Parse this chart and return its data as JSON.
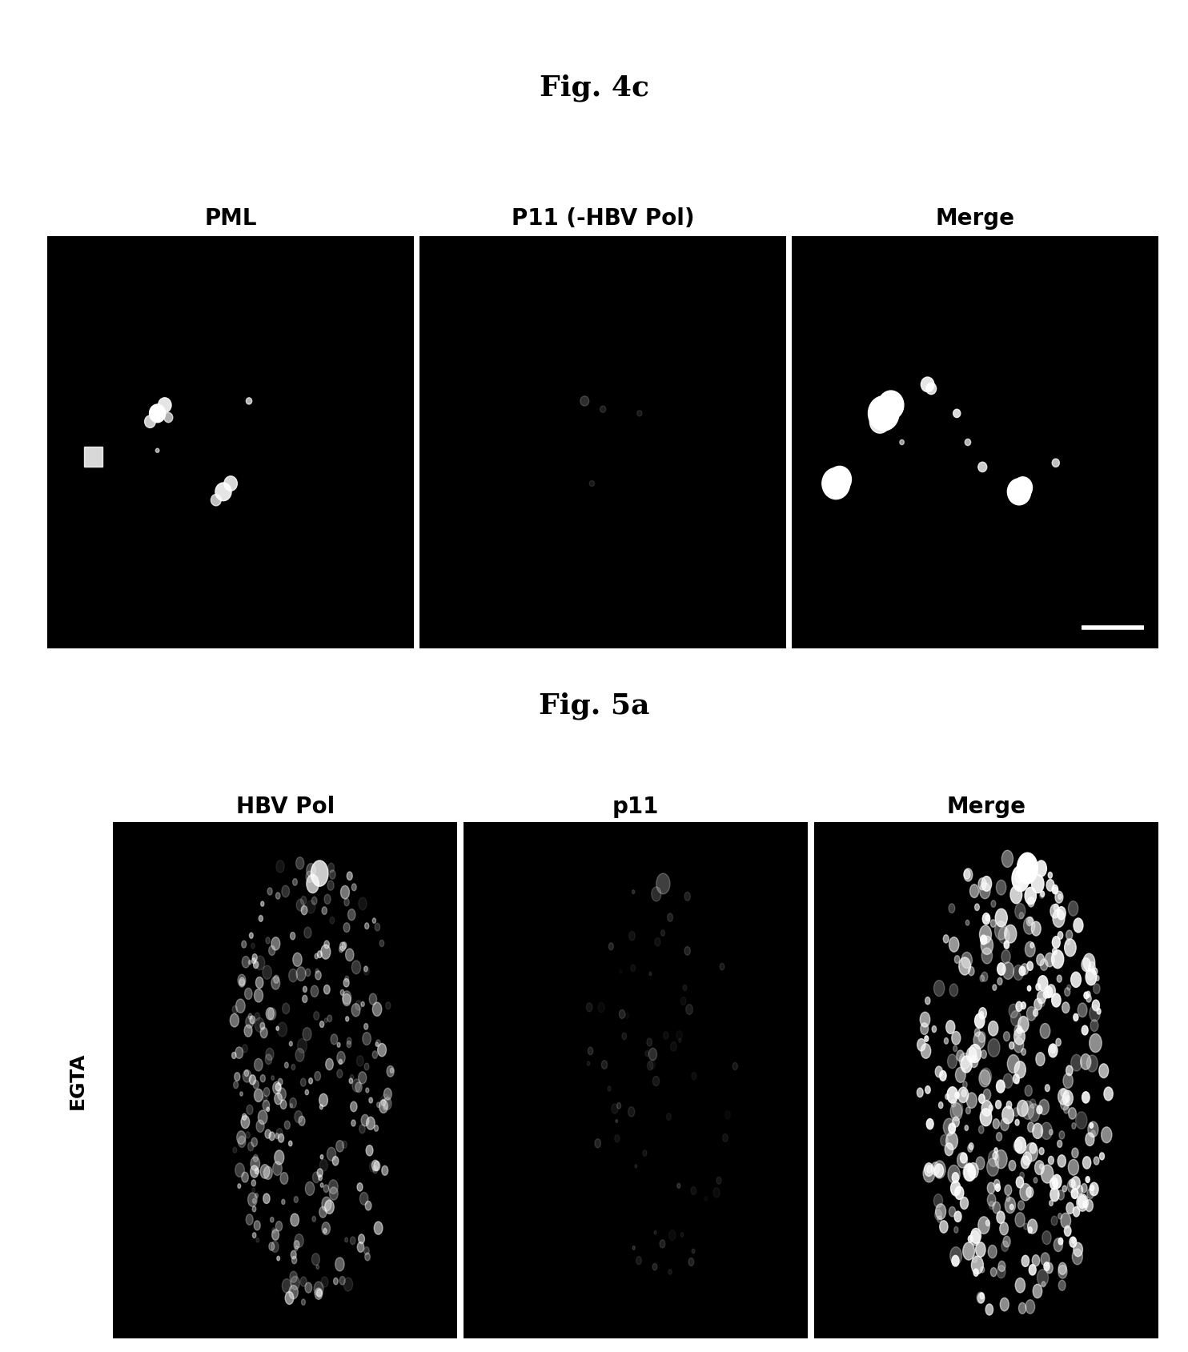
{
  "fig4c_title": "Fig. 4c",
  "fig5a_title": "Fig. 5a",
  "fig4c_labels": [
    "PML",
    "P11 (-HBV Pol)",
    "Merge"
  ],
  "fig5a_labels": [
    "HBV Pol",
    "p11",
    "Merge"
  ],
  "fig5a_row_label": "EGTA",
  "background_color": "#ffffff",
  "title_fontsize": 26,
  "label_fontsize": 20,
  "row_label_fontsize": 18,
  "title_font": "serif",
  "label_font": "sans-serif"
}
